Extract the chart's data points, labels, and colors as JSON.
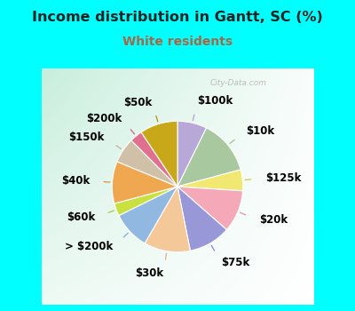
{
  "title": "Income distribution in Gantt, SC (%)",
  "subtitle": "White residents",
  "title_color": "#222222",
  "subtitle_color": "#aa6644",
  "bg_cyan": "#00ffff",
  "bg_chart_color": "#e8f5ee",
  "labels": [
    "$100k",
    "$10k",
    "$125k",
    "$20k",
    "$75k",
    "$30k",
    "> $200k",
    "$60k",
    "$40k",
    "$150k",
    "$200k",
    "$50k"
  ],
  "sizes": [
    7,
    13,
    5,
    10,
    10,
    11,
    9,
    3,
    10,
    6,
    3,
    9
  ],
  "colors": [
    "#b8a8d8",
    "#a8c8a0",
    "#f0e870",
    "#f4a8b8",
    "#9898d8",
    "#f4c898",
    "#90b8e0",
    "#c8e040",
    "#f0a850",
    "#d0c0a8",
    "#e07090",
    "#c8a818"
  ],
  "watermark": "City-Data.com",
  "title_fontsize": 11.5,
  "subtitle_fontsize": 10,
  "label_fontsize": 8.5,
  "label_fontweight": "bold",
  "line_color_map": {
    "$100k": "#b0a0d0",
    "$10k": "#a0c090",
    "$125k": "#d0c840",
    "$20k": "#f090a0",
    "$75k": "#8888c8",
    "$30k": "#e0b080",
    "> $200k": "#80a8d8",
    "$60k": "#b0cc30",
    "$40k": "#e09040",
    "$150k": "#c0b098",
    "$200k": "#d06080",
    "$50k": "#b09010"
  }
}
